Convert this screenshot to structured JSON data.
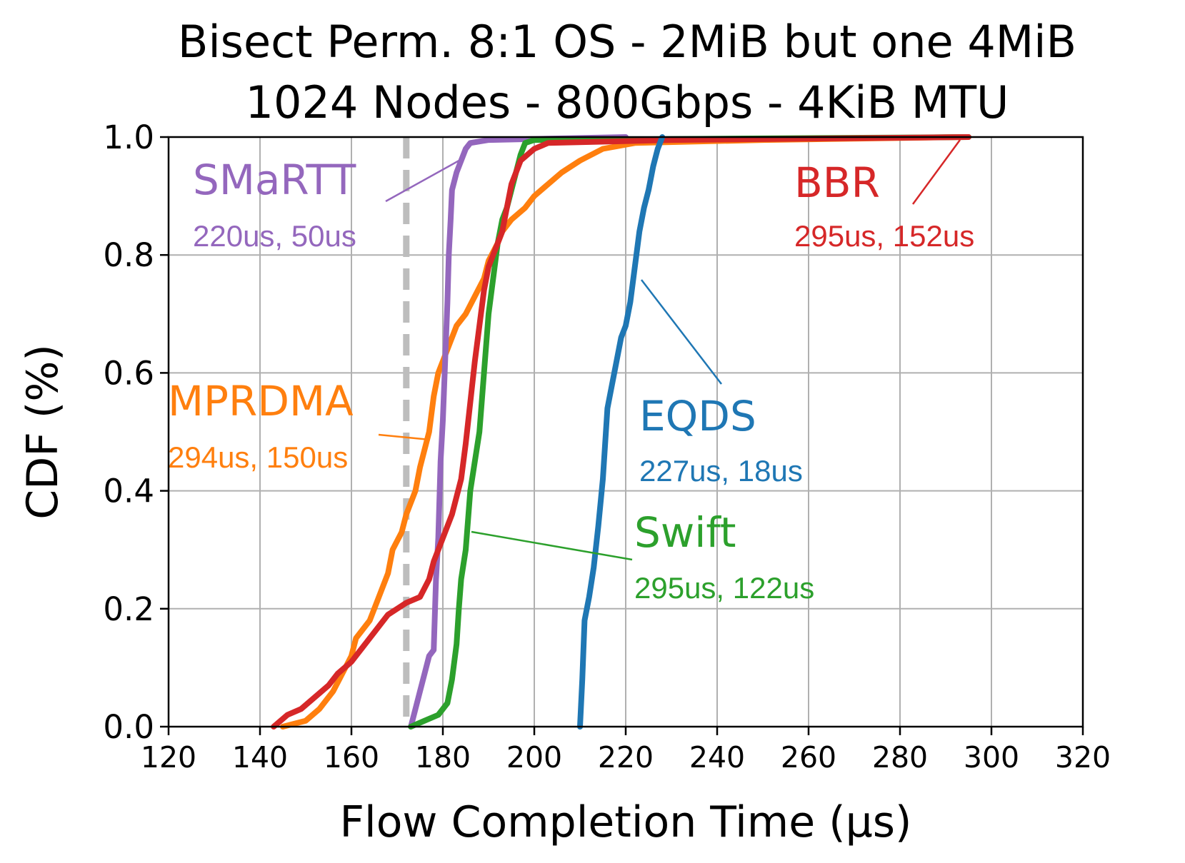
{
  "chart_data": {
    "type": "line",
    "title_line1": "Bisect Perm. 8:1 OS - 2MiB but one 4MiB",
    "title_line2": "1024 Nodes - 800Gbps - 4KiB MTU",
    "xlabel": "Flow Completion Time (µs)",
    "ylabel": "CDF (%)",
    "xlim": [
      120,
      320
    ],
    "ylim": [
      0,
      1.0
    ],
    "xticks": [
      "120",
      "140",
      "160",
      "180",
      "200",
      "220",
      "240",
      "260",
      "280",
      "300",
      "320"
    ],
    "yticks": [
      "0.0",
      "0.2",
      "0.4",
      "0.6",
      "0.8",
      "1.0"
    ],
    "grid": true,
    "reference_line": {
      "x": 172,
      "style": "dashed",
      "color": "#bdbdbd"
    },
    "series": [
      {
        "name": "MPRDMA",
        "color": "#ff7f0e",
        "stats": "294us, 150us",
        "points": [
          [
            145,
            0.0
          ],
          [
            150,
            0.01
          ],
          [
            153,
            0.03
          ],
          [
            156,
            0.06
          ],
          [
            158,
            0.09
          ],
          [
            160,
            0.12
          ],
          [
            161,
            0.15
          ],
          [
            164,
            0.18
          ],
          [
            166,
            0.22
          ],
          [
            168,
            0.26
          ],
          [
            169,
            0.3
          ],
          [
            171,
            0.33
          ],
          [
            172,
            0.36
          ],
          [
            174,
            0.4
          ],
          [
            175,
            0.44
          ],
          [
            177,
            0.5
          ],
          [
            178,
            0.56
          ],
          [
            179,
            0.6
          ],
          [
            181,
            0.64
          ],
          [
            183,
            0.68
          ],
          [
            185,
            0.7
          ],
          [
            187,
            0.73
          ],
          [
            189,
            0.76
          ],
          [
            190,
            0.79
          ],
          [
            192,
            0.82
          ],
          [
            193,
            0.84
          ],
          [
            195,
            0.86
          ],
          [
            198,
            0.88
          ],
          [
            200,
            0.9
          ],
          [
            203,
            0.92
          ],
          [
            206,
            0.94
          ],
          [
            210,
            0.96
          ],
          [
            215,
            0.98
          ],
          [
            222,
            0.99
          ],
          [
            250,
            0.995
          ],
          [
            294,
            1.0
          ]
        ]
      },
      {
        "name": "SMaRTT",
        "color": "#9467bd",
        "stats": "220us, 50us",
        "points": [
          [
            173,
            0.0
          ],
          [
            174,
            0.03
          ],
          [
            175,
            0.06
          ],
          [
            176,
            0.09
          ],
          [
            177,
            0.12
          ],
          [
            178,
            0.13
          ],
          [
            178.5,
            0.25
          ],
          [
            179,
            0.32
          ],
          [
            179.5,
            0.45
          ],
          [
            180,
            0.52
          ],
          [
            180.5,
            0.62
          ],
          [
            181,
            0.72
          ],
          [
            181.3,
            0.8
          ],
          [
            181.7,
            0.86
          ],
          [
            182,
            0.91
          ],
          [
            183,
            0.94
          ],
          [
            184,
            0.96
          ],
          [
            185,
            0.98
          ],
          [
            186,
            0.99
          ],
          [
            190,
            0.995
          ],
          [
            220,
            1.0
          ]
        ]
      },
      {
        "name": "Swift",
        "color": "#2ca02c",
        "stats": "295us, 122us",
        "points": [
          [
            173,
            0.0
          ],
          [
            176,
            0.01
          ],
          [
            179,
            0.02
          ],
          [
            181,
            0.04
          ],
          [
            182,
            0.08
          ],
          [
            183,
            0.14
          ],
          [
            183.5,
            0.2
          ],
          [
            184,
            0.25
          ],
          [
            185,
            0.3
          ],
          [
            185.5,
            0.35
          ],
          [
            186,
            0.4
          ],
          [
            187,
            0.45
          ],
          [
            188,
            0.5
          ],
          [
            188.5,
            0.55
          ],
          [
            189,
            0.6
          ],
          [
            189.5,
            0.65
          ],
          [
            190,
            0.7
          ],
          [
            191,
            0.76
          ],
          [
            192,
            0.82
          ],
          [
            193,
            0.86
          ],
          [
            194,
            0.88
          ],
          [
            195,
            0.91
          ],
          [
            196,
            0.94
          ],
          [
            197,
            0.97
          ],
          [
            198,
            0.99
          ],
          [
            200,
            0.995
          ],
          [
            295,
            1.0
          ]
        ]
      },
      {
        "name": "BBR",
        "color": "#d62728",
        "stats": "295us, 152us",
        "points": [
          [
            143,
            0.0
          ],
          [
            146,
            0.02
          ],
          [
            149,
            0.03
          ],
          [
            152,
            0.05
          ],
          [
            155,
            0.07
          ],
          [
            157,
            0.09
          ],
          [
            160,
            0.11
          ],
          [
            162,
            0.13
          ],
          [
            164,
            0.15
          ],
          [
            166,
            0.17
          ],
          [
            168,
            0.19
          ],
          [
            170,
            0.2
          ],
          [
            172,
            0.21
          ],
          [
            175,
            0.22
          ],
          [
            177,
            0.25
          ],
          [
            178,
            0.28
          ],
          [
            180,
            0.32
          ],
          [
            182,
            0.36
          ],
          [
            184,
            0.42
          ],
          [
            185,
            0.48
          ],
          [
            186,
            0.55
          ],
          [
            187,
            0.62
          ],
          [
            188,
            0.68
          ],
          [
            189,
            0.74
          ],
          [
            190,
            0.78
          ],
          [
            191,
            0.8
          ],
          [
            193,
            0.84
          ],
          [
            194,
            0.88
          ],
          [
            195,
            0.92
          ],
          [
            197,
            0.96
          ],
          [
            200,
            0.98
          ],
          [
            203,
            0.99
          ],
          [
            230,
            0.995
          ],
          [
            295,
            1.0
          ]
        ]
      },
      {
        "name": "EQDS",
        "color": "#1f77b4",
        "stats": "227us, 18us",
        "points": [
          [
            210,
            0.0
          ],
          [
            210.5,
            0.08
          ],
          [
            211,
            0.18
          ],
          [
            212,
            0.22
          ],
          [
            213,
            0.27
          ],
          [
            214,
            0.34
          ],
          [
            215,
            0.42
          ],
          [
            215.5,
            0.48
          ],
          [
            216,
            0.54
          ],
          [
            217,
            0.58
          ],
          [
            218,
            0.62
          ],
          [
            219,
            0.66
          ],
          [
            220,
            0.68
          ],
          [
            221,
            0.72
          ],
          [
            222,
            0.78
          ],
          [
            223,
            0.84
          ],
          [
            224,
            0.88
          ],
          [
            225,
            0.91
          ],
          [
            226,
            0.95
          ],
          [
            227,
            0.98
          ],
          [
            228,
            1.0
          ]
        ]
      }
    ]
  }
}
